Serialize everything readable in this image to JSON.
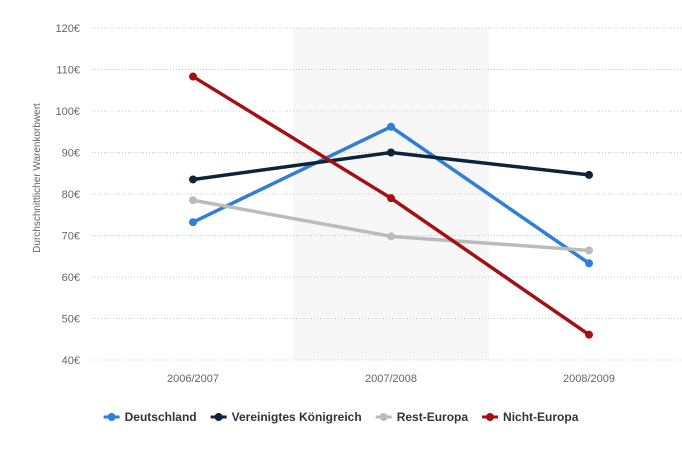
{
  "chart_data": {
    "type": "line",
    "title": "",
    "xlabel": "",
    "ylabel": "Durchschnittlicher Warenkorbwert",
    "categories": [
      "2006/2007",
      "2007/2008",
      "2008/2009"
    ],
    "y_ticks": [
      "40€",
      "50€",
      "60€",
      "70€",
      "80€",
      "90€",
      "100€",
      "110€",
      "120€"
    ],
    "ylim": [
      40,
      120
    ],
    "grid": true,
    "highlighted_category": "2007/2008",
    "highlight_color": "#f7f7f7",
    "legend_position": "bottom",
    "series": [
      {
        "name": "Deutschland",
        "color": "#2f7ed8",
        "values": [
          73.2,
          96.2,
          63.3
        ]
      },
      {
        "name": "Vereinigtes Königreich",
        "color": "#0d233a",
        "values": [
          83.5,
          90.0,
          84.6
        ]
      },
      {
        "name": "Rest-Europa",
        "color": "#bbbbbb",
        "values": [
          78.5,
          69.8,
          66.4
        ]
      },
      {
        "name": "Nicht-Europa",
        "color": "#a30f12",
        "values": [
          108.3,
          79.0,
          46.1
        ]
      }
    ]
  }
}
